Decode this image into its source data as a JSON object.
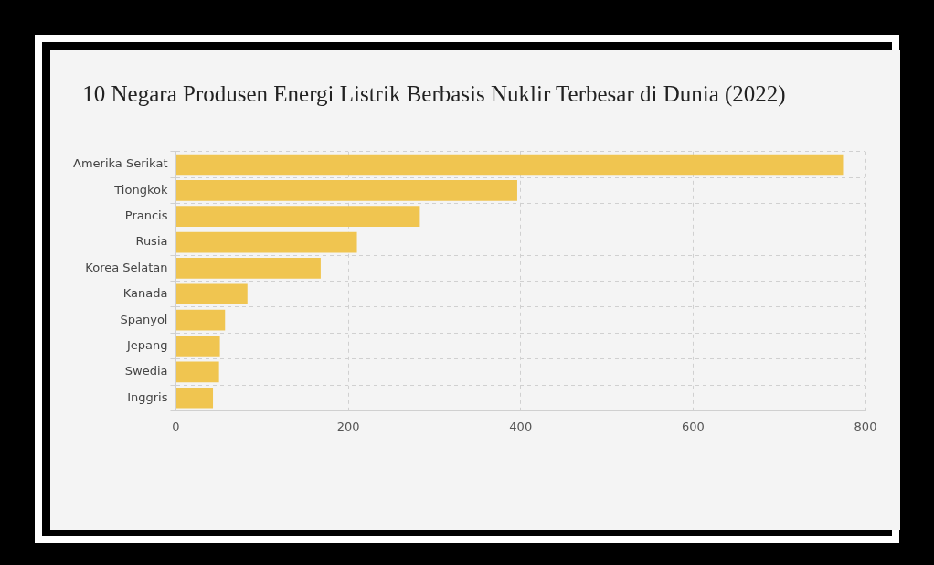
{
  "chart_data": {
    "type": "bar",
    "orientation": "horizontal",
    "title": "10 Negara Produsen Energi Listrik Berbasis Nuklir Terbesar di Dunia (2022)",
    "categories": [
      "Amerika Serikat",
      "Tiongkok",
      "Prancis",
      "Rusia",
      "Korea Selatan",
      "Kanada",
      "Spanyol",
      "Jepang",
      "Swedia",
      "Inggris"
    ],
    "values": [
      774,
      396,
      283,
      210,
      168,
      83,
      57,
      51,
      50,
      43
    ],
    "color": "#f0c550",
    "xlim": [
      0,
      800
    ],
    "xticks": [
      0,
      200,
      400,
      600,
      800
    ],
    "grid": true,
    "legend": false
  }
}
